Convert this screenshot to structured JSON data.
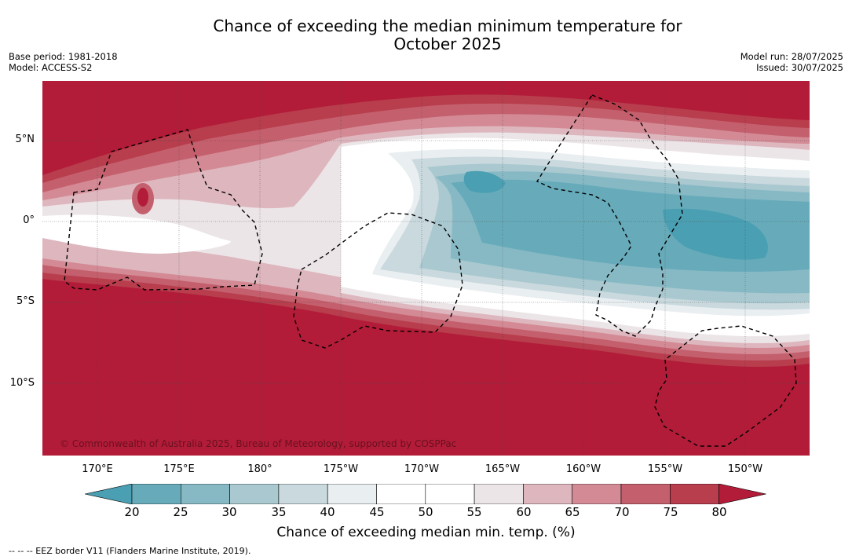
{
  "header": {
    "title_line1": "Chance of exceeding the median minimum temperature for",
    "title_line2": "October 2025",
    "base_period": "Base period: 1981-2018",
    "model": "Model: ACCESS-S2",
    "model_run": "Model run: 28/07/2025",
    "issued": "Issued: 30/07/2025"
  },
  "map": {
    "lat_labels": [
      "5°N",
      "0°",
      "5°S",
      "10°S"
    ],
    "lon_labels": [
      "170°E",
      "175°E",
      "180°",
      "175°W",
      "170°W",
      "165°W",
      "160°W",
      "155°W",
      "150°W"
    ],
    "copyright": "© Commonwealth of Australia 2025, Bureau of Meteorology, supported by COSPPac"
  },
  "colorbar": {
    "ticks": [
      "20",
      "25",
      "30",
      "35",
      "40",
      "45",
      "50",
      "55",
      "60",
      "65",
      "70",
      "75",
      "80"
    ],
    "colors": [
      "#4a9fb2",
      "#67abba",
      "#87b9c5",
      "#a9c8cf",
      "#c9d9de",
      "#e9eef1",
      "#ffffff",
      "#ffffff",
      "#ece5e8",
      "#ddb6be",
      "#d38a95",
      "#c4606d",
      "#b83d4d",
      "#b21c38"
    ],
    "label": "Chance of exceeding median min. temp. (%)"
  },
  "footnote": "--  --  -- EEZ border V11 (Flanders Marine Institute, 2019)."
}
